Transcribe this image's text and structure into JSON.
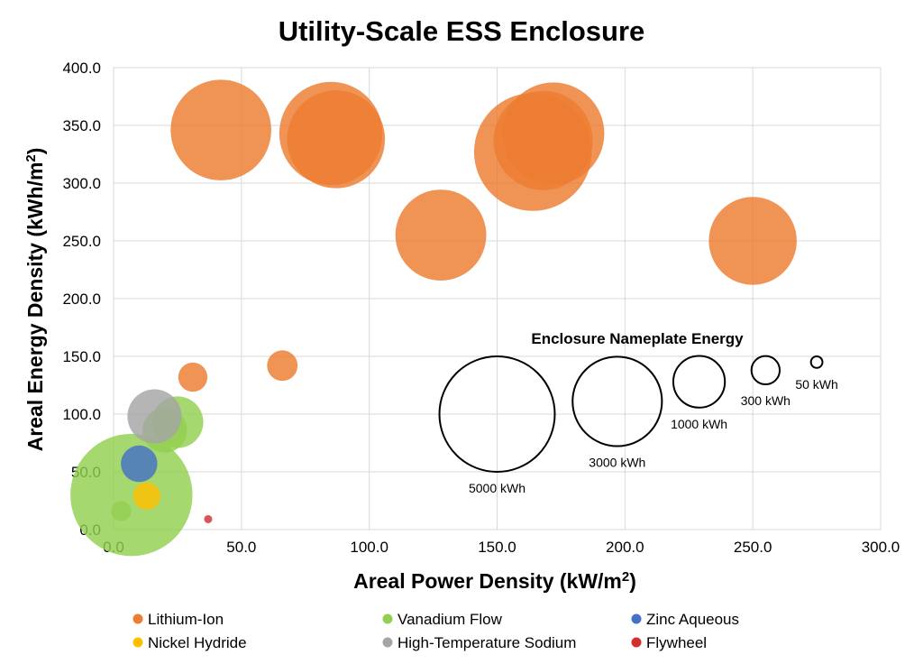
{
  "chart_data": {
    "type": "scatter",
    "title": "Utility-Scale ESS Enclosure",
    "xlabel": "Areal Power Density (kW/m",
    "xlabel_sup": "2",
    "xlabel_end": ")",
    "ylabel": "Areal Energy Density (kWh/m",
    "ylabel_sup": "2",
    "ylabel_end": ")",
    "xlim": [
      0,
      300
    ],
    "ylim": [
      0,
      400
    ],
    "x_ticks": [
      "0.0",
      "50.0",
      "100.0",
      "150.0",
      "200.0",
      "250.0",
      "300.0"
    ],
    "y_ticks": [
      "0.0",
      "50.0",
      "100.0",
      "150.0",
      "200.0",
      "250.0",
      "300.0",
      "350.0",
      "400.0"
    ],
    "grid": true,
    "legend_position": "bottom",
    "bubble_size_legend": {
      "title": "Enclosure Nameplate Energy",
      "entries": [
        {
          "label": "5000 kWh",
          "energy_kwh": 5000,
          "x": 150,
          "y": 100
        },
        {
          "label": "3000 kWh",
          "energy_kwh": 3000,
          "x": 197,
          "y": 111
        },
        {
          "label": "1000 kWh",
          "energy_kwh": 1000,
          "x": 229,
          "y": 128
        },
        {
          "label": "300 kWh",
          "energy_kwh": 300,
          "x": 255,
          "y": 138
        },
        {
          "label": "50 kWh",
          "energy_kwh": 50,
          "x": 275,
          "y": 145
        }
      ]
    },
    "series": [
      {
        "name": "Lithium-Ion",
        "color": "#ed7d31",
        "points": [
          {
            "x": 42,
            "y": 346,
            "energy_kwh": 3800
          },
          {
            "x": 85,
            "y": 343,
            "energy_kwh": 4000
          },
          {
            "x": 87,
            "y": 338,
            "energy_kwh": 3600
          },
          {
            "x": 164,
            "y": 327,
            "energy_kwh": 5200
          },
          {
            "x": 172,
            "y": 343,
            "energy_kwh": 3900
          },
          {
            "x": 168,
            "y": 337,
            "energy_kwh": 3700
          },
          {
            "x": 128,
            "y": 255,
            "energy_kwh": 3100
          },
          {
            "x": 250,
            "y": 250,
            "energy_kwh": 2900
          },
          {
            "x": 31,
            "y": 132,
            "energy_kwh": 320
          },
          {
            "x": 66,
            "y": 142,
            "energy_kwh": 350
          }
        ]
      },
      {
        "name": "Vanadium Flow",
        "color": "#92d050",
        "points": [
          {
            "x": 7,
            "y": 30,
            "energy_kwh": 5600
          },
          {
            "x": 25,
            "y": 93,
            "energy_kwh": 1000
          },
          {
            "x": 20,
            "y": 86,
            "energy_kwh": 750
          },
          {
            "x": 3,
            "y": 16,
            "energy_kwh": 150
          }
        ]
      },
      {
        "name": "Zinc Aqueous",
        "color": "#4472c4",
        "points": [
          {
            "x": 10,
            "y": 57,
            "energy_kwh": 500
          }
        ]
      },
      {
        "name": "Nickel Hydride",
        "color": "#ffc000",
        "points": [
          {
            "x": 13,
            "y": 29,
            "energy_kwh": 280
          }
        ]
      },
      {
        "name": "High-Temperature Sodium",
        "color": "#a5a5a5",
        "points": [
          {
            "x": 16,
            "y": 98,
            "energy_kwh": 1100
          }
        ]
      },
      {
        "name": "Flywheel",
        "color": "#d32f2f",
        "points": [
          {
            "x": 37,
            "y": 9,
            "energy_kwh": 25
          }
        ]
      }
    ]
  }
}
